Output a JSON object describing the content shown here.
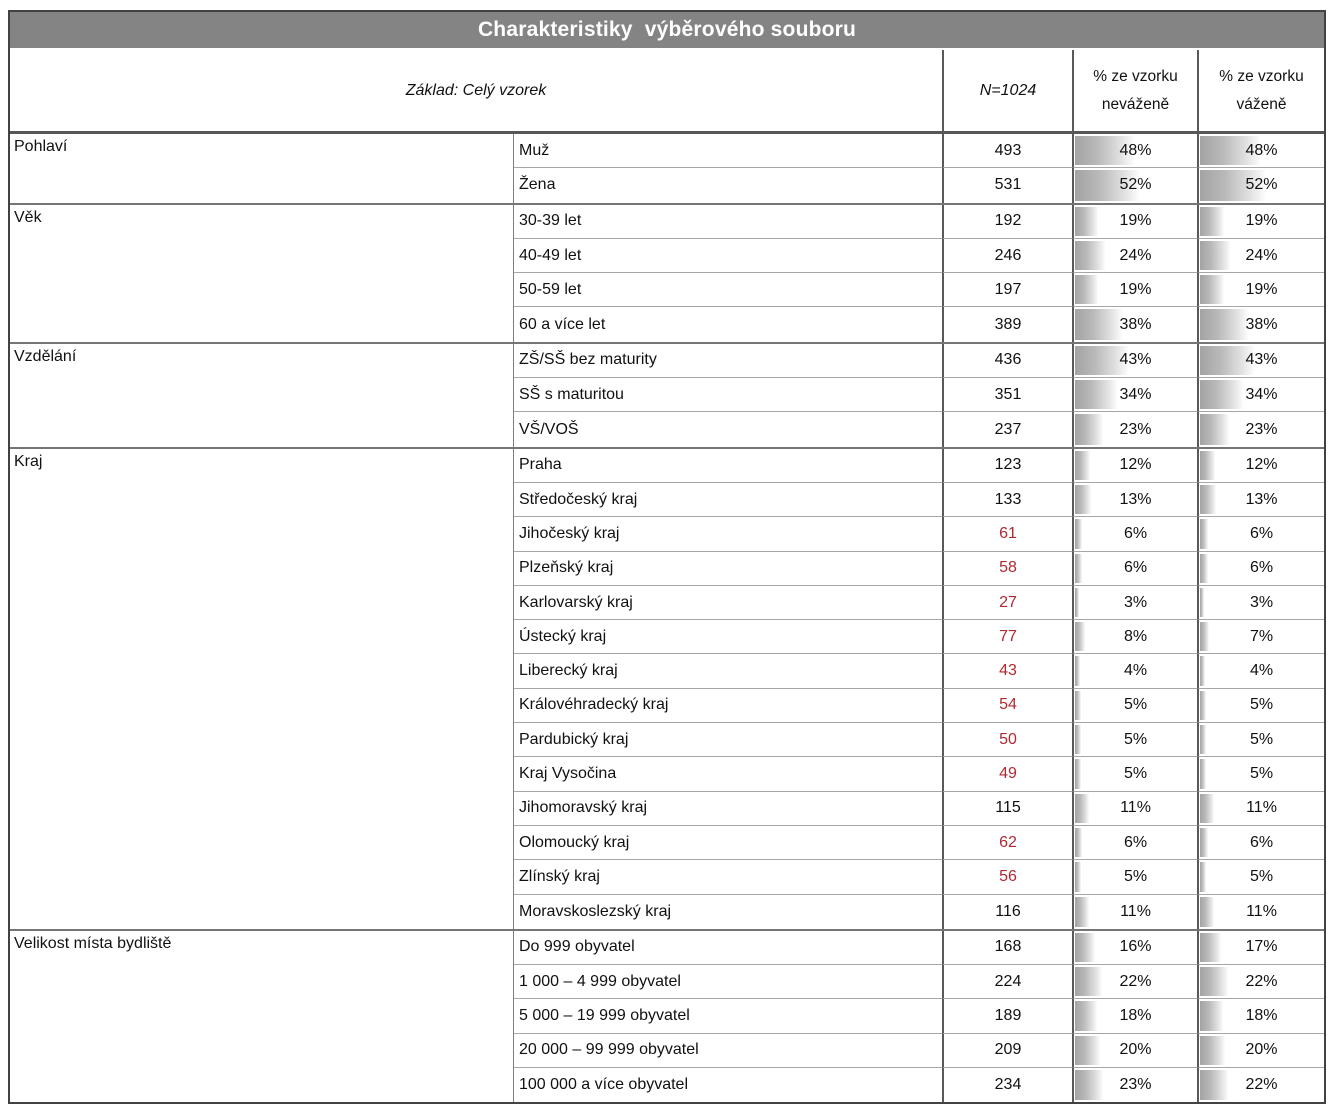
{
  "title": "Charakteristiky  výběrového souboru",
  "header": {
    "base_label": "Základ: Celý vzorek",
    "n_label": "N=1024",
    "col_unweighted": "% ze vzorku neváženě",
    "col_weighted": "% ze vzorku váženě"
  },
  "colors": {
    "title_bg": "#848484",
    "title_text": "#ffffff",
    "flag_red": "#b02a30",
    "bar_gray": "#a3a3a3",
    "border_dark": "#565656",
    "border_light": "#a6a6a6"
  },
  "table": {
    "groups": [
      {
        "category": "Pohlaví",
        "rows": [
          {
            "label": "Muž",
            "n": "493",
            "red": false,
            "u": "48%",
            "w": "48%"
          },
          {
            "label": "Žena",
            "n": "531",
            "red": false,
            "u": "52%",
            "w": "52%"
          }
        ]
      },
      {
        "category": "Věk",
        "rows": [
          {
            "label": "30-39 let",
            "n": "192",
            "red": false,
            "u": "19%",
            "w": "19%"
          },
          {
            "label": "40-49 let",
            "n": "246",
            "red": false,
            "u": "24%",
            "w": "24%"
          },
          {
            "label": "50-59 let",
            "n": "197",
            "red": false,
            "u": "19%",
            "w": "19%"
          },
          {
            "label": "60 a více let",
            "n": "389",
            "red": false,
            "u": "38%",
            "w": "38%"
          }
        ]
      },
      {
        "category": "Vzdělání",
        "rows": [
          {
            "label": "ZŠ/SŠ bez maturity",
            "n": "436",
            "red": false,
            "u": "43%",
            "w": "43%"
          },
          {
            "label": "SŠ s maturitou",
            "n": "351",
            "red": false,
            "u": "34%",
            "w": "34%"
          },
          {
            "label": "VŠ/VOŠ",
            "n": "237",
            "red": false,
            "u": "23%",
            "w": "23%"
          }
        ]
      },
      {
        "category": "Kraj",
        "rows": [
          {
            "label": "Praha",
            "n": "123",
            "red": false,
            "u": "12%",
            "w": "12%"
          },
          {
            "label": "Středočeský kraj",
            "n": "133",
            "red": false,
            "u": "13%",
            "w": "13%"
          },
          {
            "label": "Jihočeský kraj",
            "n": "61",
            "red": true,
            "u": "6%",
            "w": "6%"
          },
          {
            "label": "Plzeňský kraj",
            "n": "58",
            "red": true,
            "u": "6%",
            "w": "6%"
          },
          {
            "label": "Karlovarský kraj",
            "n": "27",
            "red": true,
            "u": "3%",
            "w": "3%"
          },
          {
            "label": "Ústecký kraj",
            "n": "77",
            "red": true,
            "u": "8%",
            "w": "7%"
          },
          {
            "label": "Liberecký kraj",
            "n": "43",
            "red": true,
            "u": "4%",
            "w": "4%"
          },
          {
            "label": "Královéhradecký kraj",
            "n": "54",
            "red": true,
            "u": "5%",
            "w": "5%"
          },
          {
            "label": "Pardubický kraj",
            "n": "50",
            "red": true,
            "u": "5%",
            "w": "5%"
          },
          {
            "label": "Kraj Vysočina",
            "n": "49",
            "red": true,
            "u": "5%",
            "w": "5%"
          },
          {
            "label": "Jihomoravský kraj",
            "n": "115",
            "red": false,
            "u": "11%",
            "w": "11%"
          },
          {
            "label": "Olomoucký kraj",
            "n": "62",
            "red": true,
            "u": "6%",
            "w": "6%"
          },
          {
            "label": "Zlínský kraj",
            "n": "56",
            "red": true,
            "u": "5%",
            "w": "5%"
          },
          {
            "label": "Moravskoslezský kraj",
            "n": "116",
            "red": false,
            "u": "11%",
            "w": "11%"
          }
        ]
      },
      {
        "category": "Velikost místa bydliště",
        "rows": [
          {
            "label": "Do 999 obyvatel",
            "n": "168",
            "red": false,
            "u": "16%",
            "w": "17%"
          },
          {
            "label": "1 000 – 4 999 obyvatel",
            "n": "224",
            "red": false,
            "u": "22%",
            "w": "22%"
          },
          {
            "label": "5 000 – 19 999 obyvatel",
            "n": "189",
            "red": false,
            "u": "18%",
            "w": "18%"
          },
          {
            "label": "20 000 – 99 999 obyvatel",
            "n": "209",
            "red": false,
            "u": "20%",
            "w": "20%"
          },
          {
            "label": "100 000 a více obyvatel",
            "n": "234",
            "red": false,
            "u": "23%",
            "w": "22%"
          }
        ]
      }
    ]
  }
}
